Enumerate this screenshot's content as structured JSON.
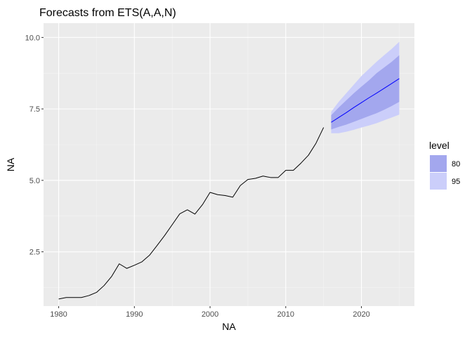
{
  "chart_data": {
    "type": "line",
    "title": "Forecasts from ETS(A,A,N)",
    "xlabel": "NA",
    "ylabel": "NA",
    "xlim": [
      1978.0,
      2027.0
    ],
    "ylim": [
      0.6,
      10.5
    ],
    "x_ticks": [
      1980,
      1990,
      2000,
      2010,
      2020
    ],
    "x_tick_labels": [
      "1980",
      "1990",
      "2000",
      "2010",
      "2020"
    ],
    "y_ticks": [
      2.5,
      5.0,
      7.5,
      10.0
    ],
    "y_tick_labels": [
      "2.5",
      "5.0",
      "7.5",
      "10.0"
    ],
    "grid": true,
    "panel_background": "#ebebeb",
    "legend": {
      "title": "level",
      "placement": "right",
      "entries": [
        {
          "label": "80",
          "color": "#a3a7ee"
        },
        {
          "label": "95",
          "color": "#cbcefa"
        }
      ]
    },
    "series": [
      {
        "role": "observed",
        "color": "#000000",
        "x": [
          1980,
          1981,
          1982,
          1983,
          1984,
          1985,
          1986,
          1987,
          1988,
          1989,
          1990,
          1991,
          1992,
          1993,
          1994,
          1995,
          1996,
          1997,
          1998,
          1999,
          2000,
          2001,
          2002,
          2003,
          2004,
          2005,
          2006,
          2007,
          2008,
          2009,
          2010,
          2011,
          2012,
          2013,
          2014,
          2015
        ],
        "y": [
          0.85,
          0.9,
          0.9,
          0.9,
          0.97,
          1.08,
          1.32,
          1.64,
          2.08,
          1.92,
          2.03,
          2.15,
          2.38,
          2.72,
          3.07,
          3.45,
          3.83,
          3.97,
          3.82,
          4.15,
          4.58,
          4.5,
          4.47,
          4.41,
          4.82,
          5.03,
          5.07,
          5.15,
          5.1,
          5.1,
          5.35,
          5.35,
          5.6,
          5.88,
          6.3,
          6.85
        ]
      },
      {
        "role": "forecast",
        "color": "#0000ff",
        "x": [
          2016,
          2017,
          2018,
          2019,
          2020,
          2021,
          2022,
          2023,
          2024,
          2025
        ],
        "y": [
          7.03,
          7.2,
          7.37,
          7.55,
          7.72,
          7.89,
          8.05,
          8.22,
          8.39,
          8.56
        ]
      }
    ],
    "intervals": [
      {
        "level": "95",
        "color": "#cbcefa",
        "x": [
          2016,
          2017,
          2018,
          2019,
          2020,
          2021,
          2022,
          2023,
          2024,
          2025
        ],
        "lower": [
          6.65,
          6.65,
          6.7,
          6.77,
          6.85,
          6.92,
          7.0,
          7.1,
          7.2,
          7.3
        ],
        "upper": [
          7.4,
          7.75,
          8.05,
          8.35,
          8.65,
          8.9,
          9.15,
          9.38,
          9.6,
          9.85
        ]
      },
      {
        "level": "80",
        "color": "#a3a7ee",
        "x": [
          2016,
          2017,
          2018,
          2019,
          2020,
          2021,
          2022,
          2023,
          2024,
          2025
        ],
        "lower": [
          6.78,
          6.87,
          6.95,
          7.05,
          7.15,
          7.25,
          7.35,
          7.47,
          7.6,
          7.75
        ],
        "upper": [
          7.28,
          7.55,
          7.8,
          8.05,
          8.28,
          8.5,
          8.75,
          8.95,
          9.15,
          9.38
        ]
      }
    ]
  }
}
